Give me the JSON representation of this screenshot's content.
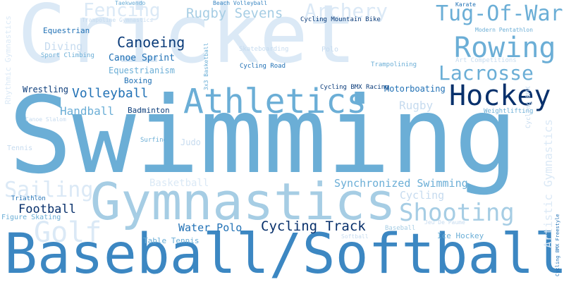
{
  "words": [
    {
      "key": "cricket",
      "text": "Cricket"
    },
    {
      "key": "swimming",
      "text": "Swimming"
    },
    {
      "key": "baseball_softball",
      "text": "Baseball/Softball"
    },
    {
      "key": "gymnastics",
      "text": "Gymnastics"
    },
    {
      "key": "athletics",
      "text": "Athletics"
    },
    {
      "key": "hockey",
      "text": "Hockey"
    },
    {
      "key": "rowing",
      "text": "Rowing"
    },
    {
      "key": "tug_of_war",
      "text": "Tug-Of-War"
    },
    {
      "key": "lacrosse",
      "text": "Lacrosse"
    },
    {
      "key": "shooting",
      "text": "Shooting"
    },
    {
      "key": "golf",
      "text": "Golf"
    },
    {
      "key": "sailing",
      "text": "Sailing"
    },
    {
      "key": "archery",
      "text": "Archery"
    },
    {
      "key": "fencing",
      "text": "Fencing"
    },
    {
      "key": "rugby_sevens",
      "text": "Rugby Sevens"
    },
    {
      "key": "canoeing",
      "text": "Canoeing"
    },
    {
      "key": "volleyball",
      "text": "Volleyball"
    },
    {
      "key": "handball",
      "text": "Handball"
    },
    {
      "key": "cycling_track",
      "text": "Cycling Track"
    },
    {
      "key": "football",
      "text": "Football"
    },
    {
      "key": "water_polo",
      "text": "Water Polo"
    },
    {
      "key": "synchronized_swimming",
      "text": "Synchronized Swimming"
    },
    {
      "key": "cycling",
      "text": "Cycling"
    },
    {
      "key": "rugby",
      "text": "Rugby"
    },
    {
      "key": "diving",
      "text": "Diving"
    },
    {
      "key": "canoe_sprint",
      "text": "Canoe Sprint"
    },
    {
      "key": "equestrianism",
      "text": "Equestrianism"
    },
    {
      "key": "boxing",
      "text": "Boxing"
    },
    {
      "key": "badminton",
      "text": "Badminton"
    },
    {
      "key": "wrestling",
      "text": "Wrestling"
    },
    {
      "key": "equestrian",
      "text": "Equestrian"
    },
    {
      "key": "basketball",
      "text": "Basketball"
    },
    {
      "key": "motorboating",
      "text": "Motorboating"
    },
    {
      "key": "trampolining",
      "text": "Trampolining"
    },
    {
      "key": "polo",
      "text": "Polo"
    },
    {
      "key": "skateboarding",
      "text": "Skateboarding"
    },
    {
      "key": "cycling_road",
      "text": "Cycling Road"
    },
    {
      "key": "cycling_bmx_racing",
      "text": "Cycling BMX Racing"
    },
    {
      "key": "cycling_mountain_bike",
      "text": "Cycling Mountain Bike"
    },
    {
      "key": "beach_volleyball",
      "text": "Beach Volleyball"
    },
    {
      "key": "taekwondo",
      "text": "Taekwondo"
    },
    {
      "key": "karate",
      "text": "Karate"
    },
    {
      "key": "trampoline_gymnastics",
      "text": "Trampoline Gymnastics"
    },
    {
      "key": "sport_climbing",
      "text": "Sport Climbing"
    },
    {
      "key": "modern_pentathlon",
      "text": "Modern Pentathlon"
    },
    {
      "key": "art_competitions",
      "text": "Art Competitions"
    },
    {
      "key": "weightlifting",
      "text": "Weightlifting"
    },
    {
      "key": "judo",
      "text": "Judo"
    },
    {
      "key": "surfing",
      "text": "Surfing"
    },
    {
      "key": "tennis",
      "text": "Tennis"
    },
    {
      "key": "canoe_slalom",
      "text": "Canoe Slalom"
    },
    {
      "key": "triathlon",
      "text": "Triathlon"
    },
    {
      "key": "figure_skating",
      "text": "Figure Skating"
    },
    {
      "key": "table_tennis",
      "text": "Table Tennis"
    },
    {
      "key": "baseball",
      "text": "Baseball"
    },
    {
      "key": "ice_hockey",
      "text": "Ice Hockey"
    },
    {
      "key": "jeu_de_paume",
      "text": "Jeu De Paume"
    },
    {
      "key": "rhythmic_gymnastics",
      "text": "Rhythmic Gymnastics"
    },
    {
      "key": "artistic_gymnastics",
      "text": "Artistic Gymnastics"
    },
    {
      "key": "cycling_bmx_freestyle",
      "text": "Cycling BMX Freestyle"
    },
    {
      "key": "3x3_basketball",
      "text": "3x3 Basketball"
    },
    {
      "key": "softball",
      "text": "Softball"
    },
    {
      "key": "cycling_bmx",
      "text": "Cycling BMX"
    }
  ]
}
